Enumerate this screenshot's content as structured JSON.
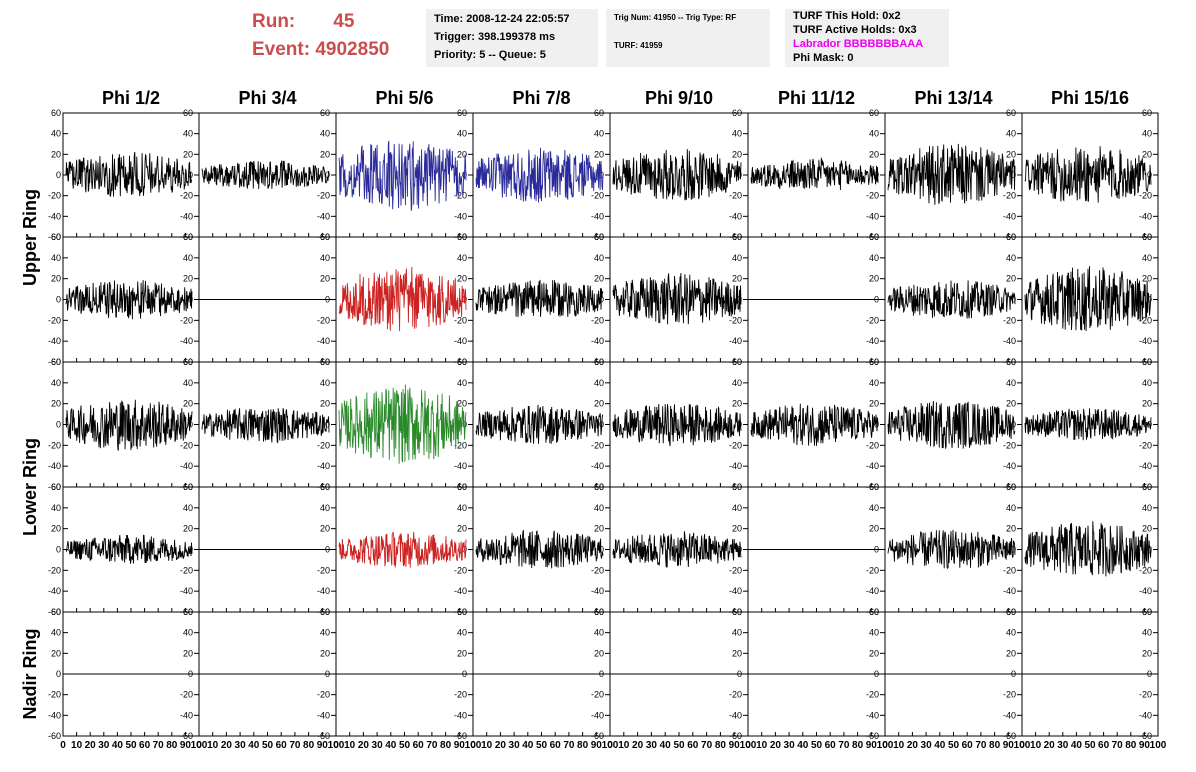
{
  "header": {
    "run_label": "Run:",
    "run_value": "45",
    "event_label": "Event:",
    "event_value": "4902850",
    "time_line": "Time: 2008-12-24 22:05:57",
    "trigger_line": "Trigger: 398.199378 ms",
    "priority_line": "Priority: 5 -- Queue: 5",
    "trig_num_line": "Trig Num: 41950 -- Trig Type: RF",
    "turf_line": "TURF: 41959",
    "turf_hold_line": "TURF This Hold: 0x2",
    "turf_active_line": "TURF Active Holds: 0x3",
    "labrador_line": "Labrador BBBBBBBAAA",
    "phi_mask_line": "Phi Mask: 0"
  },
  "colors": {
    "header_red": "#cc4d4d",
    "box_bg": "#f0f0f0",
    "magenta": "#ee00ee",
    "trace_black": "#000000",
    "trace_blue": "#2a2a9a",
    "trace_red": "#cc2222",
    "trace_green": "#2a8a2a"
  },
  "chart_data": {
    "type": "line",
    "columns": [
      "Phi 1/2",
      "Phi 3/4",
      "Phi 5/6",
      "Phi 7/8",
      "Phi 9/10",
      "Phi 11/12",
      "Phi 13/14",
      "Phi 15/16"
    ],
    "ring_labels": [
      "Upper Ring",
      "Lower Ring",
      "Nadir Ring"
    ],
    "ylim": [
      -60,
      60
    ],
    "y_ticks": [
      -60,
      -40,
      -20,
      0,
      20,
      40,
      60
    ],
    "xlim": [
      0,
      100
    ],
    "x_ticks": [
      0,
      10,
      20,
      30,
      40,
      50,
      60,
      70,
      80,
      90,
      100
    ],
    "rows": [
      {
        "ring": "Upper Ring",
        "amplitudes": [
          14,
          9,
          22,
          17,
          16,
          10,
          19,
          18
        ],
        "colors": [
          "black",
          "black",
          "blue",
          "blue",
          "black",
          "black",
          "black",
          "black"
        ]
      },
      {
        "ring": "Upper Ring",
        "amplitudes": [
          12,
          0,
          20,
          12,
          16,
          0,
          12,
          20
        ],
        "colors": [
          "black",
          "black",
          "red",
          "black",
          "black",
          "black",
          "black",
          "black"
        ]
      },
      {
        "ring": "Lower Ring",
        "amplitudes": [
          16,
          11,
          24,
          12,
          13,
          13,
          15,
          10
        ],
        "colors": [
          "black",
          "black",
          "green",
          "black",
          "black",
          "black",
          "black",
          "black"
        ]
      },
      {
        "ring": "Lower Ring",
        "amplitudes": [
          9,
          0,
          11,
          12,
          11,
          0,
          12,
          17
        ],
        "colors": [
          "black",
          "black",
          "red",
          "black",
          "black",
          "black",
          "black",
          "black"
        ]
      },
      {
        "ring": "Nadir Ring",
        "amplitudes": [
          0,
          0,
          0,
          0,
          0,
          0,
          0,
          0
        ],
        "colors": [
          "black",
          "black",
          "black",
          "black",
          "black",
          "black",
          "black",
          "black"
        ]
      }
    ]
  }
}
